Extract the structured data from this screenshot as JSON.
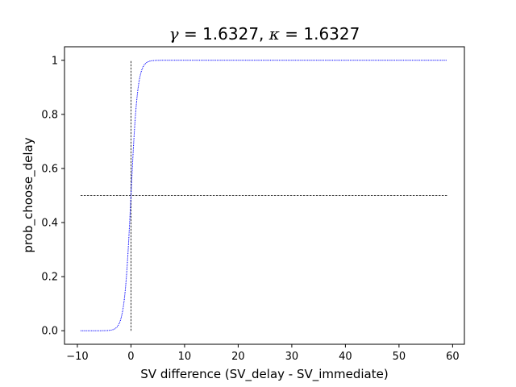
{
  "chart_data": {
    "type": "line",
    "title": {
      "sym1": "γ",
      "eq1": " = 1.6327, ",
      "sym2": "κ",
      "eq2": " = 1.6327"
    },
    "xlabel": "SV difference (SV_delay - SV_immediate)",
    "ylabel": "prob_choose_delay",
    "xlim": [
      -12.4,
      62.2
    ],
    "ylim": [
      -0.05,
      1.05
    ],
    "xticks": [
      -10,
      0,
      10,
      20,
      30,
      40,
      50,
      60
    ],
    "xtick_labels": [
      "−10",
      "0",
      "10",
      "20",
      "30",
      "40",
      "50",
      "60"
    ],
    "yticks": [
      0.0,
      0.2,
      0.4,
      0.6,
      0.8,
      1.0
    ],
    "ytick_labels": [
      "0.0",
      "0.2",
      "0.4",
      "0.6",
      "0.8",
      1.0
    ],
    "series": [
      {
        "style": "dotted",
        "color": "#0000ff",
        "function": "logistic",
        "gamma": 1.6327,
        "kappa": 1.6327,
        "x_range": [
          -9.4,
          59
        ]
      }
    ],
    "reference_lines": [
      {
        "orientation": "horizontal",
        "y": 0.5,
        "x_range": [
          -9.4,
          59
        ],
        "color": "#000000",
        "style": "dashed"
      },
      {
        "orientation": "vertical",
        "x": 0,
        "y_range": [
          0,
          1
        ],
        "color": "#000000",
        "style": "dashed"
      }
    ],
    "grid": false,
    "legend": "none"
  }
}
